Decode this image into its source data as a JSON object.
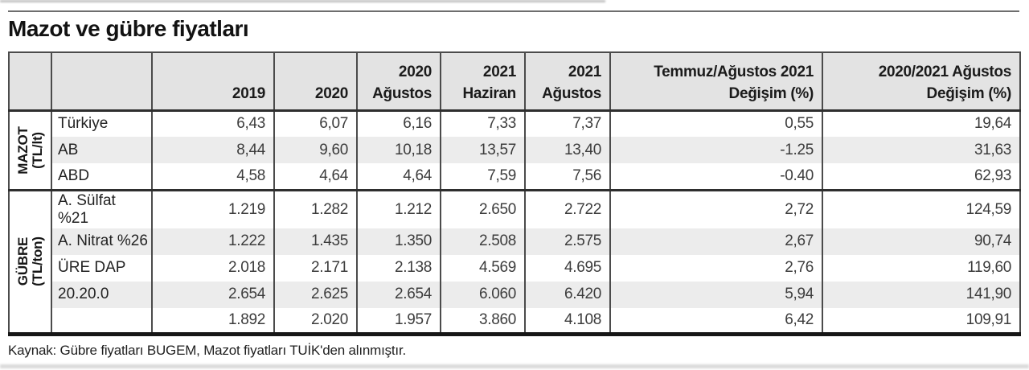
{
  "chart_data": {
    "type": "table",
    "title": "Mazot ve gübre fiyatları",
    "columns": [
      "2019",
      "2020",
      "2020 Ağustos",
      "2021 Haziran",
      "2021 Ağustos",
      "Temmuz/Ağustos 2021 Değişim (%)",
      "2020/2021 Ağustos Değişim (%)"
    ],
    "header_lines": [
      [
        "",
        "2019"
      ],
      [
        "",
        "2020"
      ],
      [
        "2020",
        "Ağustos"
      ],
      [
        "2021",
        "Haziran"
      ],
      [
        "2021",
        "Ağustos"
      ],
      [
        "Temmuz/Ağustos 2021",
        "Değişim (%)"
      ],
      [
        "2020/2021 Ağustos",
        "Değişim (%)"
      ]
    ],
    "groups": [
      {
        "group_label": [
          "MAZOT",
          "(TL/lt)"
        ],
        "rows": [
          {
            "label": "Türkiye",
            "values": [
              "6,43",
              "6,07",
              "6,16",
              "7,33",
              "7,37",
              "0,55",
              "19,64"
            ]
          },
          {
            "label": "AB",
            "values": [
              "8,44",
              "9,60",
              "10,18",
              "13,57",
              "13,40",
              "-1.25",
              "31,63"
            ]
          },
          {
            "label": "ABD",
            "values": [
              "4,58",
              "4,64",
              "4,64",
              "7,59",
              "7,56",
              "-0.40",
              "62,93"
            ]
          }
        ]
      },
      {
        "group_label": [
          "GÜBRE",
          "(TL/ton)"
        ],
        "rows": [
          {
            "label": "A. Sülfat %21",
            "values": [
              "1.219",
              "1.282",
              "1.212",
              "2.650",
              "2.722",
              "2,72",
              "124,59"
            ]
          },
          {
            "label": "A. Nitrat %26",
            "values": [
              "1.222",
              "1.435",
              "1.350",
              "2.508",
              "2.575",
              "2,67",
              "90,74"
            ]
          },
          {
            "label": "ÜRE DAP",
            "values": [
              "2.018",
              "2.171",
              "2.138",
              "4.569",
              "4.695",
              "2,76",
              "119,60"
            ]
          },
          {
            "label": "20.20.0",
            "values": [
              "2.654",
              "2.625",
              "2.654",
              "6.060",
              "6.420",
              "5,94",
              "141,90"
            ]
          },
          {
            "label": "",
            "values": [
              "1.892",
              "2.020",
              "1.957",
              "3.860",
              "4.108",
              "6,42",
              "109,91"
            ]
          }
        ]
      }
    ],
    "source": "Kaynak: Gübre fiyatları BUGEM, Mazot fiyatları TUİK'den alınmıştır."
  }
}
